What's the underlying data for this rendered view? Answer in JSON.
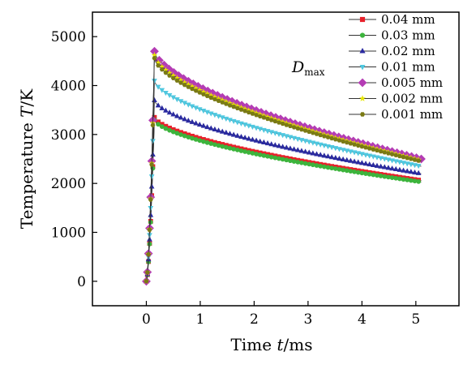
{
  "chart_data": {
    "type": "line",
    "title": "",
    "xlabel": {
      "prefix": "Time ",
      "var": "t",
      "suffix": "/ms"
    },
    "ylabel": {
      "prefix": "Temperature ",
      "var": "T",
      "suffix": "/K"
    },
    "xlim": [
      -1.0,
      5.8
    ],
    "ylim": [
      -500,
      5500
    ],
    "xticks": [
      0,
      1,
      2,
      3,
      4,
      5
    ],
    "yticks": [
      0,
      1000,
      2000,
      3000,
      4000,
      5000
    ],
    "x_tick_labels": [
      "0",
      "1",
      "2",
      "3",
      "4",
      "5"
    ],
    "y_tick_labels": [
      "0",
      "1000",
      "2000",
      "3000",
      "4000",
      "5000"
    ],
    "grid": false,
    "legend_position": "top-right",
    "annotation": {
      "text": "D",
      "sub": "max"
    },
    "series": [
      {
        "name": "0.04 mm",
        "color": "#e8202a",
        "marker": "square",
        "peak_time": 0.15,
        "peak": 3350,
        "end": 2060
      },
      {
        "name": "0.03 mm",
        "color": "#3cb43c",
        "marker": "circle",
        "peak_time": 0.15,
        "peak": 3300,
        "end": 2030
      },
      {
        "name": "0.02 mm",
        "color": "#2a2aa0",
        "marker": "triangle",
        "peak_time": 0.15,
        "peak": 3700,
        "end": 2200
      },
      {
        "name": "0.01 mm",
        "color": "#4fc8e0",
        "marker": "tri-down",
        "peak_time": 0.15,
        "peak": 4100,
        "end": 2350
      },
      {
        "name": "0.005 mm",
        "color": "#b43cb4",
        "marker": "diamond",
        "peak_time": 0.15,
        "peak": 4700,
        "end": 2500
      },
      {
        "name": "0.002 mm",
        "color": "#e6e600",
        "marker": "star",
        "peak_time": 0.15,
        "peak": 4620,
        "end": 2470
      },
      {
        "name": "0.001 mm",
        "color": "#7a7a14",
        "marker": "hexagon",
        "peak_time": 0.15,
        "peak": 4560,
        "end": 2450
      }
    ]
  }
}
